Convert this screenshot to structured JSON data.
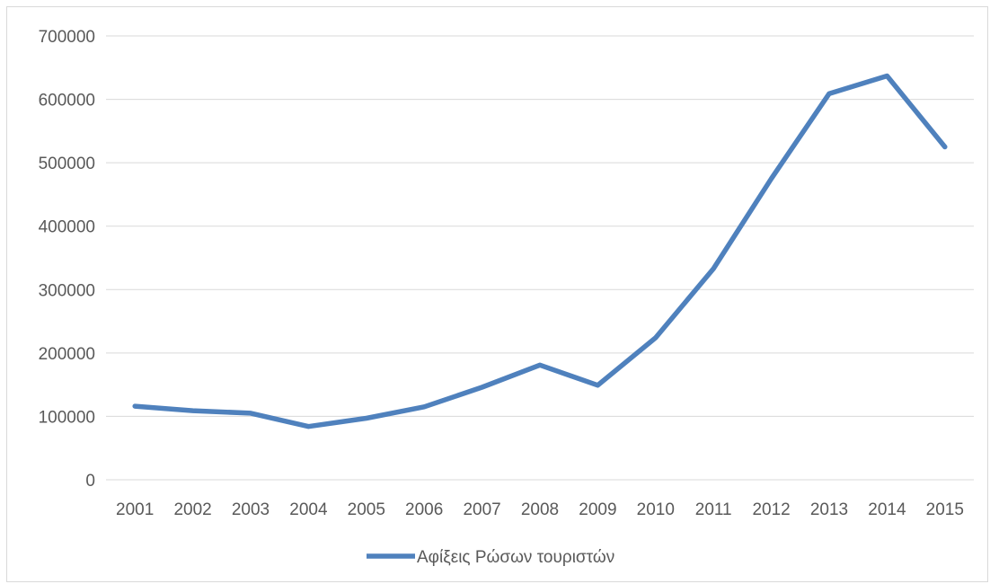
{
  "chart_data": {
    "type": "line",
    "title": "",
    "xlabel": "",
    "ylabel": "",
    "categories": [
      "2001",
      "2002",
      "2003",
      "2004",
      "2005",
      "2006",
      "2007",
      "2008",
      "2009",
      "2010",
      "2011",
      "2012",
      "2013",
      "2014",
      "2015"
    ],
    "series": [
      {
        "name": "Αφίξεις Ρώσων τουριστών",
        "color": "#4f81bd",
        "values": [
          116000,
          109000,
          105000,
          84000,
          97000,
          115000,
          146000,
          181000,
          149000,
          224000,
          333000,
          475000,
          609000,
          637000,
          525000
        ]
      }
    ],
    "ylim": [
      0,
      700000
    ],
    "yticks": [
      0,
      100000,
      200000,
      300000,
      400000,
      500000,
      600000,
      700000
    ],
    "ytick_labels": [
      "0",
      "100000",
      "200000",
      "300000",
      "400000",
      "500000",
      "600000",
      "700000"
    ],
    "grid": "horizontal",
    "legend_position": "bottom"
  },
  "colors": {
    "gridline": "#d9d9d9",
    "axis_text": "#595959"
  }
}
